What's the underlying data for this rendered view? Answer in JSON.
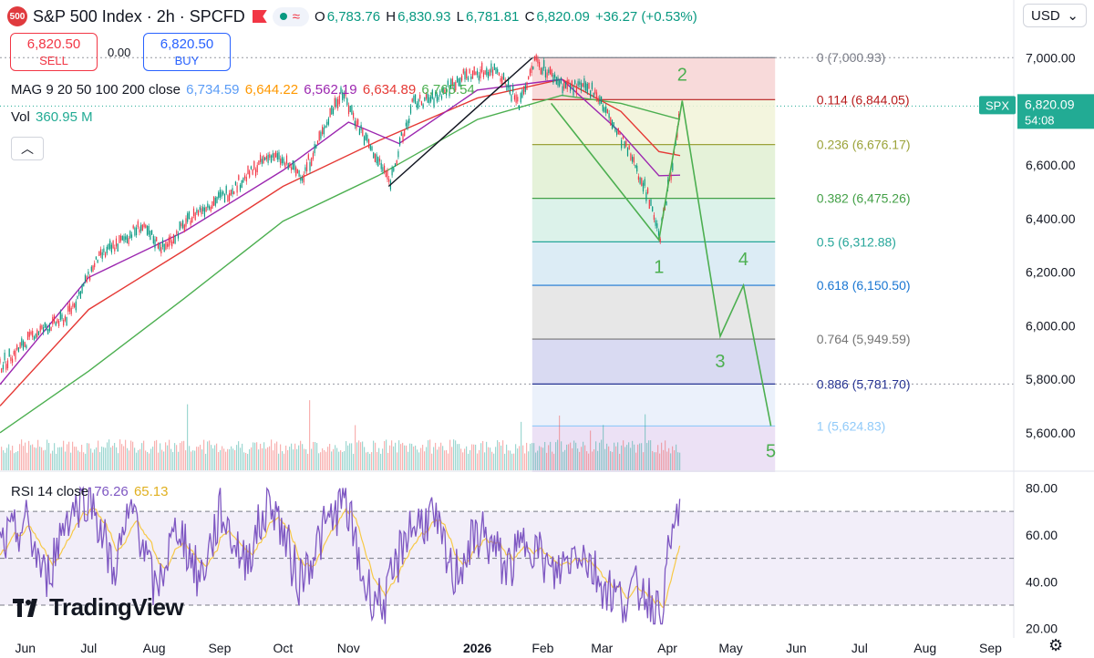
{
  "header": {
    "logo_text": "500",
    "title": "S&P 500 Index · 2h · SPCFD",
    "ohlc": {
      "o_label": "O",
      "o": "6,783.76",
      "h_label": "H",
      "h": "6,830.93",
      "l_label": "L",
      "l": "6,781.81",
      "c_label": "C",
      "c": "6,820.09",
      "change": "+36.27 (+0.53%)"
    },
    "currency": "USD"
  },
  "trade": {
    "sell_price": "6,820.50",
    "sell_label": "SELL",
    "spread": "0.00",
    "buy_price": "6,820.50",
    "buy_label": "BUY"
  },
  "indicators": {
    "ma_label": "MAG 9 20 50 100 200 close",
    "ma_values": [
      "6,734.59",
      "6,644.22",
      "6,562.19",
      "6,634.89",
      "6,765.54"
    ],
    "ma_colors": [
      "#5b9cf6",
      "#ff9800",
      "#9c27b0",
      "#e53935",
      "#4caf50"
    ],
    "vol_label": "Vol",
    "vol_value": "360.95 M",
    "rsi_label": "RSI 14 close",
    "rsi_value": "76.26",
    "rsi_ma_value": "65.13"
  },
  "watermark": "TradingView",
  "colors": {
    "up": "#089981",
    "down": "#f23645",
    "rsi": "#7e57c2",
    "rsi_ma": "#f7c948",
    "price_tag": "#22ab94"
  },
  "chart_data": {
    "type": "line",
    "price_axis": [
      "7,000.00",
      "6,800.00",
      "6,600.00",
      "6,400.00",
      "6,200.00",
      "6,000.00",
      "5,800.00",
      "5,600.00"
    ],
    "price_ticks": [
      7000,
      6800,
      6600,
      6400,
      6200,
      6000,
      5800,
      5600
    ],
    "ylim": [
      5480,
      7080
    ],
    "current_price": {
      "label": "SPX",
      "value": "6,820.09",
      "countdown": "54:08",
      "price": 6820.09
    },
    "x_labels": [
      "Jun",
      "Jul",
      "Aug",
      "Sep",
      "Oct",
      "Nov",
      "2026",
      "Feb",
      "Mar",
      "Apr",
      "May",
      "Jun",
      "Jul",
      "Aug",
      "Sep"
    ],
    "price_path": [
      {
        "t": "2025-05-20",
        "p": 5850
      },
      {
        "t": "2025-06-05",
        "p": 5970
      },
      {
        "t": "2025-06-20",
        "p": 6030
      },
      {
        "t": "2025-07-05",
        "p": 6250
      },
      {
        "t": "2025-07-25",
        "p": 6370
      },
      {
        "t": "2025-08-05",
        "p": 6290
      },
      {
        "t": "2025-08-20",
        "p": 6420
      },
      {
        "t": "2025-09-05",
        "p": 6500
      },
      {
        "t": "2025-09-25",
        "p": 6640
      },
      {
        "t": "2025-10-10",
        "p": 6560
      },
      {
        "t": "2025-10-28",
        "p": 6880
      },
      {
        "t": "2025-11-07",
        "p": 6720
      },
      {
        "t": "2025-11-20",
        "p": 6540
      },
      {
        "t": "2025-12-01",
        "p": 6830
      },
      {
        "t": "2025-12-12",
        "p": 6850
      },
      {
        "t": "2025-12-24",
        "p": 6930
      },
      {
        "t": "2026-01-10",
        "p": 6960
      },
      {
        "t": "2026-01-20",
        "p": 6830
      },
      {
        "t": "2026-01-28",
        "p": 6990
      },
      {
        "t": "2026-02-10",
        "p": 6900
      },
      {
        "t": "2026-02-25",
        "p": 6880
      },
      {
        "t": "2026-03-05",
        "p": 6760
      },
      {
        "t": "2026-03-15",
        "p": 6620
      },
      {
        "t": "2026-03-22",
        "p": 6500
      },
      {
        "t": "2026-03-28",
        "p": 6330
      },
      {
        "t": "2026-04-02",
        "p": 6560
      },
      {
        "t": "2026-04-07",
        "p": 6820
      }
    ],
    "moving_averages": [
      {
        "name": "MA 200",
        "color": "#4caf50",
        "path": [
          {
            "t": "2025-05-20",
            "p": 5600
          },
          {
            "t": "2025-07-01",
            "p": 5830
          },
          {
            "t": "2025-08-15",
            "p": 6100
          },
          {
            "t": "2025-10-01",
            "p": 6390
          },
          {
            "t": "2025-11-15",
            "p": 6560
          },
          {
            "t": "2026-01-01",
            "p": 6770
          },
          {
            "t": "2026-02-10",
            "p": 6860
          },
          {
            "t": "2026-03-10",
            "p": 6830
          },
          {
            "t": "2026-04-07",
            "p": 6770
          }
        ]
      },
      {
        "name": "MA 100",
        "color": "#e53935",
        "path": [
          {
            "t": "2025-05-20",
            "p": 5700
          },
          {
            "t": "2025-07-01",
            "p": 6060
          },
          {
            "t": "2025-08-15",
            "p": 6280
          },
          {
            "t": "2025-10-01",
            "p": 6520
          },
          {
            "t": "2025-11-15",
            "p": 6690
          },
          {
            "t": "2026-01-01",
            "p": 6850
          },
          {
            "t": "2026-02-10",
            "p": 6920
          },
          {
            "t": "2026-03-10",
            "p": 6800
          },
          {
            "t": "2026-03-28",
            "p": 6650
          },
          {
            "t": "2026-04-07",
            "p": 6635
          }
        ]
      },
      {
        "name": "MA 50",
        "color": "#9c27b0",
        "path": [
          {
            "t": "2025-05-20",
            "p": 5780
          },
          {
            "t": "2025-07-01",
            "p": 6180
          },
          {
            "t": "2025-08-15",
            "p": 6350
          },
          {
            "t": "2025-10-01",
            "p": 6580
          },
          {
            "t": "2025-11-01",
            "p": 6760
          },
          {
            "t": "2025-11-25",
            "p": 6680
          },
          {
            "t": "2026-01-01",
            "p": 6880
          },
          {
            "t": "2026-02-10",
            "p": 6920
          },
          {
            "t": "2026-03-10",
            "p": 6720
          },
          {
            "t": "2026-03-28",
            "p": 6560
          },
          {
            "t": "2026-04-07",
            "p": 6562
          }
        ]
      }
    ],
    "rsi_axis": [
      "80.00",
      "60.00",
      "40.00",
      "20.00"
    ],
    "rsi_ticks": [
      80,
      60,
      40,
      20
    ],
    "rsi_ylim": [
      16,
      86
    ],
    "rsi_bands": [
      70,
      50,
      30
    ],
    "rsi_path": [
      {
        "t": "2025-05-20",
        "v": 55
      },
      {
        "t": "2025-06-01",
        "v": 65
      },
      {
        "t": "2025-06-10",
        "v": 40
      },
      {
        "t": "2025-06-20",
        "v": 68
      },
      {
        "t": "2025-07-01",
        "v": 78
      },
      {
        "t": "2025-07-12",
        "v": 45
      },
      {
        "t": "2025-07-22",
        "v": 72
      },
      {
        "t": "2025-08-01",
        "v": 35
      },
      {
        "t": "2025-08-12",
        "v": 65
      },
      {
        "t": "2025-08-22",
        "v": 40
      },
      {
        "t": "2025-09-01",
        "v": 70
      },
      {
        "t": "2025-09-12",
        "v": 48
      },
      {
        "t": "2025-09-25",
        "v": 75
      },
      {
        "t": "2025-10-08",
        "v": 40
      },
      {
        "t": "2025-10-20",
        "v": 62
      },
      {
        "t": "2025-10-30",
        "v": 76
      },
      {
        "t": "2025-11-08",
        "v": 38
      },
      {
        "t": "2025-11-18",
        "v": 30
      },
      {
        "t": "2025-11-28",
        "v": 62
      },
      {
        "t": "2025-12-10",
        "v": 68
      },
      {
        "t": "2025-12-20",
        "v": 42
      },
      {
        "t": "2026-01-02",
        "v": 62
      },
      {
        "t": "2026-01-15",
        "v": 45
      },
      {
        "t": "2026-01-25",
        "v": 60
      },
      {
        "t": "2026-02-05",
        "v": 42
      },
      {
        "t": "2026-02-18",
        "v": 55
      },
      {
        "t": "2026-02-28",
        "v": 40
      },
      {
        "t": "2026-03-10",
        "v": 32
      },
      {
        "t": "2026-03-20",
        "v": 38
      },
      {
        "t": "2026-03-28",
        "v": 25
      },
      {
        "t": "2026-04-02",
        "v": 55
      },
      {
        "t": "2026-04-07",
        "v": 76
      }
    ],
    "fibonacci": {
      "start": "2026-01-27",
      "end": "2026-05-22",
      "levels": [
        {
          "ratio": "0",
          "label": "0 (7,000.93)",
          "price": 7000.93,
          "color": "#787b86",
          "fill": "#f7d4d4"
        },
        {
          "ratio": "0.114",
          "label": "0.114 (6,844.05)",
          "price": 6844.05,
          "color": "#b71c1c",
          "fill": "#f1f3d8"
        },
        {
          "ratio": "0.236",
          "label": "0.236 (6,676.17)",
          "price": 6676.17,
          "color": "#9ca33a",
          "fill": "#e1f0d2"
        },
        {
          "ratio": "0.382",
          "label": "0.382 (6,475.26)",
          "price": 6475.26,
          "color": "#43a047",
          "fill": "#d6f0e6"
        },
        {
          "ratio": "0.5",
          "label": "0.5 (6,312.88)",
          "price": 6312.88,
          "color": "#26a69a",
          "fill": "#d6e9f3"
        },
        {
          "ratio": "0.618",
          "label": "0.618 (6,150.50)",
          "price": 6150.5,
          "color": "#1976d2",
          "fill": "#e3e3e3"
        },
        {
          "ratio": "0.764",
          "label": "0.764 (5,949.59)",
          "price": 5949.59,
          "color": "#757575",
          "fill": "#d2d3f0"
        },
        {
          "ratio": "0.886",
          "label": "0.886 (5,781.70)",
          "price": 5781.7,
          "color": "#283593",
          "fill": "#e7eefa"
        },
        {
          "ratio": "1",
          "label": "1 (5,624.83)",
          "price": 5624.83,
          "color": "#90caf9",
          "fill": "#e9dcf3"
        }
      ]
    },
    "trend_line": [
      {
        "t": "2025-11-20",
        "p": 6520
      },
      {
        "t": "2026-01-27",
        "p": 7000
      }
    ],
    "elliott_wave": [
      {
        "t": "2026-02-05",
        "p": 6830,
        "label": ""
      },
      {
        "t": "2026-03-28",
        "p": 6320,
        "label": "1"
      },
      {
        "t": "2026-04-08",
        "p": 6840,
        "label": "2"
      },
      {
        "t": "2026-04-26",
        "p": 5960,
        "label": "3"
      },
      {
        "t": "2026-05-07",
        "p": 6150,
        "label": "4"
      },
      {
        "t": "2026-05-20",
        "p": 5625,
        "label": "5"
      }
    ]
  }
}
